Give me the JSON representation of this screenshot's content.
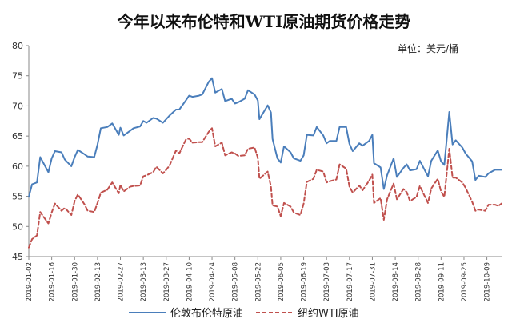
{
  "chart_data": {
    "type": "line",
    "title": "今年以来布伦特和WTI原油期货价格走势",
    "unit": "单位：美元/桶",
    "ylim": [
      45,
      80
    ],
    "yticks": [
      45,
      50,
      55,
      60,
      65,
      70,
      75,
      80
    ],
    "x_tick_labels": [
      "2019-01-02",
      "2019-01-16",
      "2019-01-30",
      "2019-02-13",
      "2019-02-27",
      "2019-03-13",
      "2019-03-27",
      "2019-04-10",
      "2019-04-24",
      "2019-05-08",
      "2019-05-22",
      "2019-06-05",
      "2019-06-19",
      "2019-07-03",
      "2019-07-17",
      "2019-07-31",
      "2019-08-14",
      "2019-08-28",
      "2019-09-11",
      "2019-09-25",
      "2019-10-09"
    ],
    "legend_position": "bottom",
    "grid": false,
    "series": [
      {
        "name": "伦敦布伦特原油",
        "color": "#4a7ebb",
        "dash": "solid",
        "points": [
          [
            "2019-01-02",
            54.9
          ],
          [
            "2019-01-04",
            57.0
          ],
          [
            "2019-01-07",
            57.3
          ],
          [
            "2019-01-09",
            61.5
          ],
          [
            "2019-01-11",
            60.5
          ],
          [
            "2019-01-14",
            59.0
          ],
          [
            "2019-01-16",
            61.3
          ],
          [
            "2019-01-18",
            62.5
          ],
          [
            "2019-01-22",
            62.3
          ],
          [
            "2019-01-24",
            61.1
          ],
          [
            "2019-01-28",
            60.0
          ],
          [
            "2019-01-30",
            61.5
          ],
          [
            "2019-02-01",
            62.7
          ],
          [
            "2019-02-05",
            62.0
          ],
          [
            "2019-02-07",
            61.6
          ],
          [
            "2019-02-11",
            61.5
          ],
          [
            "2019-02-13",
            63.6
          ],
          [
            "2019-02-15",
            66.3
          ],
          [
            "2019-02-19",
            66.5
          ],
          [
            "2019-02-22",
            67.1
          ],
          [
            "2019-02-26",
            65.2
          ],
          [
            "2019-02-27",
            66.4
          ],
          [
            "2019-03-01",
            65.1
          ],
          [
            "2019-03-05",
            65.9
          ],
          [
            "2019-03-07",
            66.3
          ],
          [
            "2019-03-11",
            66.6
          ],
          [
            "2019-03-13",
            67.5
          ],
          [
            "2019-03-15",
            67.2
          ],
          [
            "2019-03-19",
            68.0
          ],
          [
            "2019-03-21",
            67.9
          ],
          [
            "2019-03-25",
            67.2
          ],
          [
            "2019-03-27",
            67.8
          ],
          [
            "2019-03-29",
            68.4
          ],
          [
            "2019-04-02",
            69.4
          ],
          [
            "2019-04-04",
            69.4
          ],
          [
            "2019-04-08",
            70.9
          ],
          [
            "2019-04-10",
            71.7
          ],
          [
            "2019-04-12",
            71.5
          ],
          [
            "2019-04-16",
            71.7
          ],
          [
            "2019-04-18",
            71.9
          ],
          [
            "2019-04-22",
            74.0
          ],
          [
            "2019-04-24",
            74.6
          ],
          [
            "2019-04-26",
            72.2
          ],
          [
            "2019-04-30",
            72.8
          ],
          [
            "2019-05-02",
            70.8
          ],
          [
            "2019-05-06",
            71.2
          ],
          [
            "2019-05-08",
            70.4
          ],
          [
            "2019-05-10",
            70.6
          ],
          [
            "2019-05-14",
            71.2
          ],
          [
            "2019-05-16",
            72.6
          ],
          [
            "2019-05-20",
            71.9
          ],
          [
            "2019-05-22",
            70.9
          ],
          [
            "2019-05-23",
            67.8
          ],
          [
            "2019-05-28",
            70.1
          ],
          [
            "2019-05-30",
            68.9
          ],
          [
            "2019-05-31",
            64.5
          ],
          [
            "2019-06-03",
            61.3
          ],
          [
            "2019-06-05",
            60.6
          ],
          [
            "2019-06-07",
            63.3
          ],
          [
            "2019-06-11",
            62.3
          ],
          [
            "2019-06-13",
            61.3
          ],
          [
            "2019-06-17",
            60.9
          ],
          [
            "2019-06-19",
            61.8
          ],
          [
            "2019-06-21",
            65.2
          ],
          [
            "2019-06-25",
            65.1
          ],
          [
            "2019-06-27",
            66.5
          ],
          [
            "2019-07-01",
            65.1
          ],
          [
            "2019-07-03",
            63.8
          ],
          [
            "2019-07-05",
            64.2
          ],
          [
            "2019-07-09",
            64.2
          ],
          [
            "2019-07-11",
            66.5
          ],
          [
            "2019-07-15",
            66.5
          ],
          [
            "2019-07-17",
            63.7
          ],
          [
            "2019-07-19",
            62.5
          ],
          [
            "2019-07-23",
            63.8
          ],
          [
            "2019-07-25",
            63.4
          ],
          [
            "2019-07-29",
            64.2
          ],
          [
            "2019-07-31",
            65.2
          ],
          [
            "2019-08-01",
            60.5
          ],
          [
            "2019-08-05",
            59.8
          ],
          [
            "2019-08-07",
            56.2
          ],
          [
            "2019-08-09",
            58.5
          ],
          [
            "2019-08-13",
            61.3
          ],
          [
            "2019-08-15",
            58.2
          ],
          [
            "2019-08-19",
            59.7
          ],
          [
            "2019-08-21",
            60.3
          ],
          [
            "2019-08-23",
            59.3
          ],
          [
            "2019-08-27",
            59.5
          ],
          [
            "2019-08-29",
            60.9
          ],
          [
            "2019-09-03",
            58.3
          ],
          [
            "2019-09-05",
            60.9
          ],
          [
            "2019-09-09",
            62.6
          ],
          [
            "2019-09-11",
            60.8
          ],
          [
            "2019-09-13",
            60.2
          ],
          [
            "2019-09-16",
            69.0
          ],
          [
            "2019-09-18",
            63.6
          ],
          [
            "2019-09-20",
            64.3
          ],
          [
            "2019-09-24",
            63.1
          ],
          [
            "2019-09-26",
            62.1
          ],
          [
            "2019-09-30",
            60.8
          ],
          [
            "2019-10-02",
            57.7
          ],
          [
            "2019-10-04",
            58.4
          ],
          [
            "2019-10-08",
            58.2
          ],
          [
            "2019-10-10",
            58.8
          ],
          [
            "2019-10-14",
            59.4
          ],
          [
            "2019-10-16",
            59.4
          ],
          [
            "2019-10-18",
            59.4
          ]
        ]
      },
      {
        "name": "纽约WTI原油",
        "color": "#c0504d",
        "dash": "dashed",
        "points": [
          [
            "2019-01-02",
            46.5
          ],
          [
            "2019-01-04",
            47.9
          ],
          [
            "2019-01-07",
            48.5
          ],
          [
            "2019-01-09",
            52.4
          ],
          [
            "2019-01-11",
            51.6
          ],
          [
            "2019-01-14",
            50.5
          ],
          [
            "2019-01-16",
            52.3
          ],
          [
            "2019-01-18",
            53.8
          ],
          [
            "2019-01-22",
            52.6
          ],
          [
            "2019-01-24",
            53.1
          ],
          [
            "2019-01-28",
            51.9
          ],
          [
            "2019-01-30",
            54.2
          ],
          [
            "2019-02-01",
            55.3
          ],
          [
            "2019-02-05",
            53.7
          ],
          [
            "2019-02-07",
            52.6
          ],
          [
            "2019-02-11",
            52.4
          ],
          [
            "2019-02-13",
            53.9
          ],
          [
            "2019-02-15",
            55.6
          ],
          [
            "2019-02-19",
            56.1
          ],
          [
            "2019-02-22",
            57.3
          ],
          [
            "2019-02-26",
            55.5
          ],
          [
            "2019-02-27",
            56.9
          ],
          [
            "2019-03-01",
            55.8
          ],
          [
            "2019-03-05",
            56.6
          ],
          [
            "2019-03-07",
            56.7
          ],
          [
            "2019-03-11",
            56.8
          ],
          [
            "2019-03-13",
            58.3
          ],
          [
            "2019-03-15",
            58.5
          ],
          [
            "2019-03-19",
            59.0
          ],
          [
            "2019-03-21",
            59.9
          ],
          [
            "2019-03-25",
            58.8
          ],
          [
            "2019-03-27",
            59.4
          ],
          [
            "2019-03-29",
            60.1
          ],
          [
            "2019-04-02",
            62.6
          ],
          [
            "2019-04-04",
            62.1
          ],
          [
            "2019-04-08",
            64.4
          ],
          [
            "2019-04-10",
            64.6
          ],
          [
            "2019-04-12",
            63.9
          ],
          [
            "2019-04-16",
            64.0
          ],
          [
            "2019-04-18",
            64.0
          ],
          [
            "2019-04-22",
            65.7
          ],
          [
            "2019-04-24",
            66.3
          ],
          [
            "2019-04-26",
            63.3
          ],
          [
            "2019-04-30",
            63.9
          ],
          [
            "2019-05-02",
            61.8
          ],
          [
            "2019-05-06",
            62.3
          ],
          [
            "2019-05-08",
            62.1
          ],
          [
            "2019-05-10",
            61.7
          ],
          [
            "2019-05-14",
            61.8
          ],
          [
            "2019-05-16",
            62.9
          ],
          [
            "2019-05-20",
            63.1
          ],
          [
            "2019-05-22",
            61.4
          ],
          [
            "2019-05-23",
            57.9
          ],
          [
            "2019-05-28",
            59.1
          ],
          [
            "2019-05-30",
            56.6
          ],
          [
            "2019-05-31",
            53.5
          ],
          [
            "2019-06-03",
            53.3
          ],
          [
            "2019-06-05",
            51.7
          ],
          [
            "2019-06-07",
            53.9
          ],
          [
            "2019-06-11",
            53.3
          ],
          [
            "2019-06-13",
            52.3
          ],
          [
            "2019-06-17",
            51.9
          ],
          [
            "2019-06-19",
            53.8
          ],
          [
            "2019-06-21",
            57.4
          ],
          [
            "2019-06-25",
            57.9
          ],
          [
            "2019-06-27",
            59.4
          ],
          [
            "2019-07-01",
            59.1
          ],
          [
            "2019-07-03",
            57.3
          ],
          [
            "2019-07-05",
            57.5
          ],
          [
            "2019-07-09",
            57.8
          ],
          [
            "2019-07-11",
            60.3
          ],
          [
            "2019-07-15",
            59.6
          ],
          [
            "2019-07-17",
            56.6
          ],
          [
            "2019-07-19",
            55.6
          ],
          [
            "2019-07-23",
            56.8
          ],
          [
            "2019-07-25",
            56.0
          ],
          [
            "2019-07-29",
            57.6
          ],
          [
            "2019-07-31",
            58.6
          ],
          [
            "2019-08-01",
            53.9
          ],
          [
            "2019-08-05",
            54.7
          ],
          [
            "2019-08-07",
            51.1
          ],
          [
            "2019-08-09",
            54.5
          ],
          [
            "2019-08-13",
            57.1
          ],
          [
            "2019-08-15",
            54.5
          ],
          [
            "2019-08-19",
            56.2
          ],
          [
            "2019-08-21",
            55.7
          ],
          [
            "2019-08-23",
            54.2
          ],
          [
            "2019-08-27",
            54.9
          ],
          [
            "2019-08-29",
            56.7
          ],
          [
            "2019-09-03",
            53.9
          ],
          [
            "2019-09-05",
            56.3
          ],
          [
            "2019-09-09",
            57.9
          ],
          [
            "2019-09-11",
            55.8
          ],
          [
            "2019-09-13",
            54.9
          ],
          [
            "2019-09-16",
            62.9
          ],
          [
            "2019-09-18",
            58.1
          ],
          [
            "2019-09-20",
            58.1
          ],
          [
            "2019-09-24",
            57.3
          ],
          [
            "2019-09-26",
            56.4
          ],
          [
            "2019-09-30",
            54.1
          ],
          [
            "2019-10-02",
            52.6
          ],
          [
            "2019-10-04",
            52.8
          ],
          [
            "2019-10-08",
            52.6
          ],
          [
            "2019-10-10",
            53.6
          ],
          [
            "2019-10-14",
            53.6
          ],
          [
            "2019-10-16",
            53.4
          ],
          [
            "2019-10-18",
            53.8
          ]
        ]
      }
    ]
  }
}
